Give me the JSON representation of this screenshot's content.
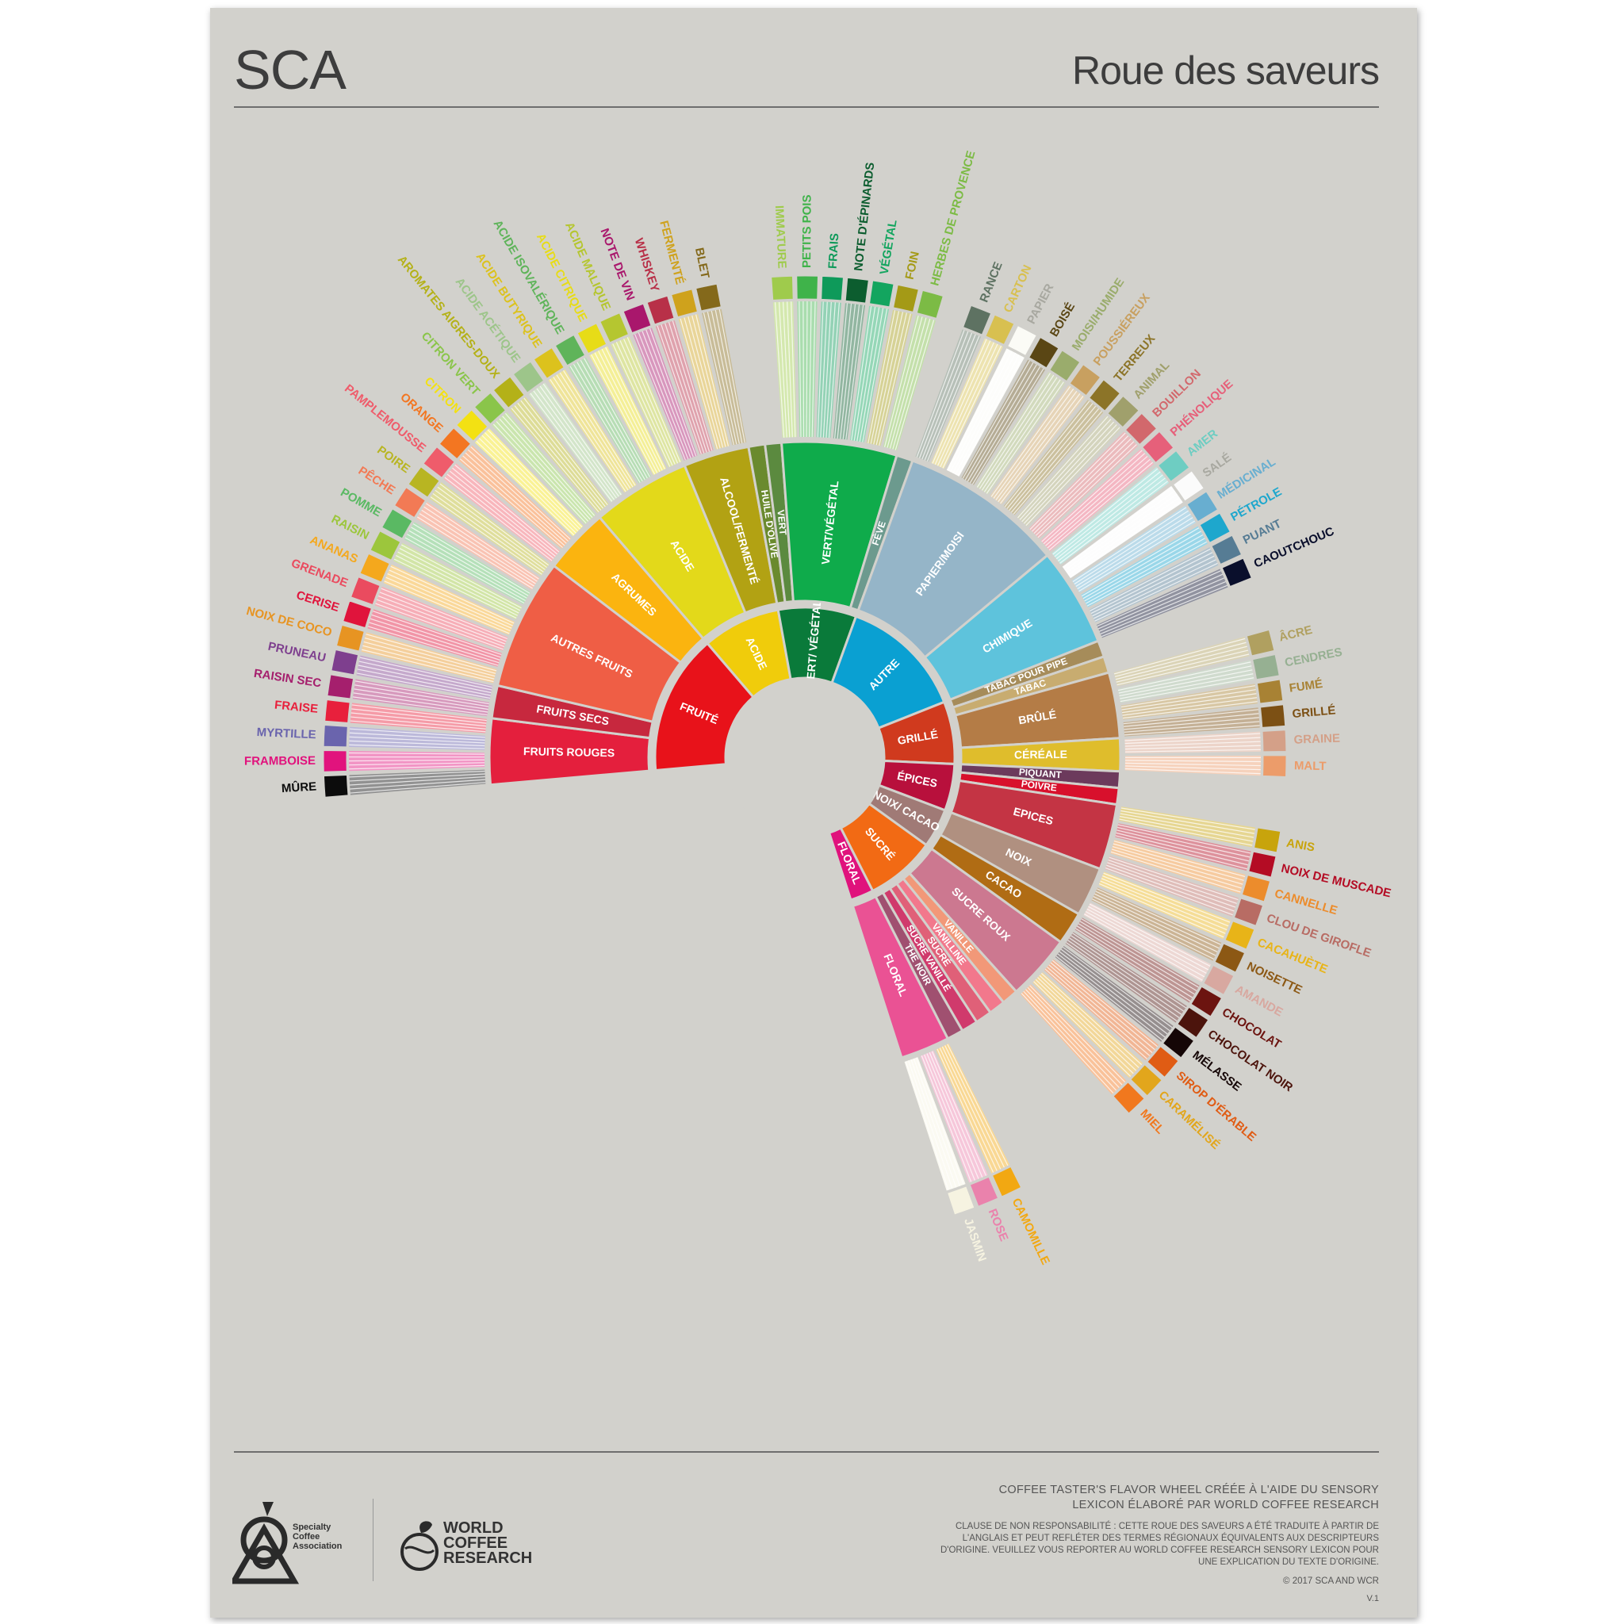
{
  "header": {
    "title": "SCA",
    "subtitle": "Roue des saveurs"
  },
  "wheel": {
    "inner": [
      {
        "label": "FRUITÉ",
        "color": "#e8121a",
        "mids": [
          {
            "label": "FRUITS ROUGES",
            "color": "#e41f3d",
            "leaves": [
              {
                "label": "MÛRE",
                "color": "#0c0c0c"
              },
              {
                "label": "FRAMBOISE",
                "color": "#e1137d"
              },
              {
                "label": "MYRTILLE",
                "color": "#6a64ad"
              },
              {
                "label": "FRAISE",
                "color": "#e8203c"
              }
            ]
          },
          {
            "label": "FRUITS SECS",
            "color": "#c7283e",
            "leaves": [
              {
                "label": "RAISIN SEC",
                "color": "#a51f6d"
              },
              {
                "label": "PRUNEAU",
                "color": "#7e3f8e"
              }
            ]
          },
          {
            "label": "AUTRES FRUITS",
            "color": "#ef5e45",
            "leaves": [
              {
                "label": "NOIX DE COCO",
                "color": "#e79422"
              },
              {
                "label": "CERISE",
                "color": "#e0143c"
              },
              {
                "label": "GRENADE",
                "color": "#ea4b5f"
              },
              {
                "label": "ANANAS",
                "color": "#f4a81d"
              },
              {
                "label": "RAISIN",
                "color": "#9cc63c"
              },
              {
                "label": "POMME",
                "color": "#5ab963"
              },
              {
                "label": "PÊCHE",
                "color": "#f27a55"
              },
              {
                "label": "POIRE",
                "color": "#b8b522"
              }
            ]
          },
          {
            "label": "AGRUMES",
            "color": "#fbb40f",
            "leaves": [
              {
                "label": "PAMPLEMOUSSE",
                "color": "#ef5c6b"
              },
              {
                "label": "ORANGE",
                "color": "#f37621"
              },
              {
                "label": "CITRON",
                "color": "#f3e113"
              },
              {
                "label": "CITRON VERT",
                "color": "#8ac54a"
              }
            ]
          }
        ]
      },
      {
        "label": "ACIDE",
        "color": "#f0cc0b",
        "mids": [
          {
            "label": "ACIDE",
            "color": "#e3d91a",
            "leaves": [
              {
                "label": "AROMATES AIGRES-DOUX",
                "color": "#b4b118"
              },
              {
                "label": "ACIDE ACÉTIQUE",
                "color": "#9dc58a"
              },
              {
                "label": "ACIDE BUTYRIQUE",
                "color": "#dcc21d"
              },
              {
                "label": "ACIDE ISOVALÉRIQUE",
                "color": "#5fb45a"
              },
              {
                "label": "ACIDE CITRIQUE",
                "color": "#e7dc17"
              },
              {
                "label": "ACIDE MALIQUE",
                "color": "#b5c630"
              }
            ]
          },
          {
            "label": "ALCOOL/FERMENTÉ",
            "color": "#b2a213",
            "leaves": [
              {
                "label": "NOTE DE VIN",
                "color": "#a9176c"
              },
              {
                "label": "WHISKEY",
                "color": "#b83048"
              },
              {
                "label": "FERMENTÉ",
                "color": "#cfa21c"
              },
              {
                "label": "BLET",
                "color": "#84691b"
              }
            ]
          }
        ]
      },
      {
        "label": "VERT/ VÉGÉTAL",
        "color": "#0a7a3a",
        "mids": [
          {
            "label": "HUILE D'OLIVE",
            "color": "#6a8a2e",
            "leaves": []
          },
          {
            "label": "VERT",
            "color": "#5b8a3f",
            "leaves": []
          },
          {
            "label": "VERT/VÉGÉTAL",
            "color": "#0fab4b",
            "leaves": [
              {
                "label": "IMMATURE",
                "color": "#9fcb4c"
              },
              {
                "label": "PETITS POIS",
                "color": "#3fb34a"
              },
              {
                "label": "FRAIS",
                "color": "#0e9a5a"
              },
              {
                "label": "NOTE D'ÉPINARDS",
                "color": "#0c5d2f"
              },
              {
                "label": "VÉGÉTAL",
                "color": "#13a55f"
              },
              {
                "label": "FOIN",
                "color": "#a49a16"
              },
              {
                "label": "HERBES DE PROVENCE",
                "color": "#7cbb45"
              }
            ]
          },
          {
            "label": "FÈVE",
            "color": "#6c9a8e",
            "leaves": []
          }
        ]
      },
      {
        "label": "AUTRE",
        "color": "#0aa0d2",
        "mids": [
          {
            "label": "PAPIER/MOISI",
            "color": "#95b5c8",
            "leaves": [
              {
                "label": "RANCE",
                "color": "#5e7262"
              },
              {
                "label": "CARTON",
                "color": "#d8c050"
              },
              {
                "label": "PAPIER",
                "color": "#fbfbf6"
              },
              {
                "label": "BOISÉ",
                "color": "#5a4614"
              },
              {
                "label": "MOISI/HUMIDE",
                "color": "#9aac6c"
              },
              {
                "label": "POUSSIÉREUX",
                "color": "#c8a060"
              },
              {
                "label": "TERREUX",
                "color": "#8c7428"
              },
              {
                "label": "ANIMAL",
                "color": "#a0a06c"
              },
              {
                "label": "BOUILLON",
                "color": "#d2686c"
              },
              {
                "label": "PHÉNOLIQUE",
                "color": "#e6607a"
              }
            ]
          },
          {
            "label": "CHIMIQUE",
            "color": "#5ec3dc",
            "leaves": [
              {
                "label": "AMER",
                "color": "#6ecdc2"
              },
              {
                "label": "SALÉ",
                "color": "#fbfbfb"
              },
              {
                "label": "MÉDICINAL",
                "color": "#68aed0"
              },
              {
                "label": "PÉTROLE",
                "color": "#1ea7cd"
              },
              {
                "label": "PUANT",
                "color": "#567c94"
              },
              {
                "label": "CAOUTCHOUC",
                "color": "#0a0f2c"
              }
            ]
          }
        ]
      },
      {
        "label": "GRILLÉ",
        "color": "#d03a1e",
        "mids": [
          {
            "label": "TABAC POUR PIPE",
            "color": "#a68c5a",
            "leaves": []
          },
          {
            "label": "TABAC",
            "color": "#c8ac70",
            "leaves": []
          },
          {
            "label": "BRÛLÉ",
            "color": "#b47c46",
            "leaves": [
              {
                "label": "ÂCRE",
                "color": "#b0a060"
              },
              {
                "label": "CENDRES",
                "color": "#96b092"
              },
              {
                "label": "FUMÉ",
                "color": "#a88234"
              },
              {
                "label": "GRILLÉ",
                "color": "#7c5014"
              }
            ]
          },
          {
            "label": "CÉRÉALE",
            "color": "#dfbd2c",
            "leaves": [
              {
                "label": "GRAINE",
                "color": "#d4a088"
              },
              {
                "label": "MALT",
                "color": "#ec9c6a"
              }
            ]
          }
        ]
      },
      {
        "label": "ÉPICES",
        "color": "#b8103c",
        "mids": [
          {
            "label": "PIQUANT",
            "color": "#6c3a5c",
            "leaves": []
          },
          {
            "label": "POIVRE",
            "color": "#d8102c",
            "leaves": []
          },
          {
            "label": "EPICES",
            "color": "#c43444",
            "leaves": [
              {
                "label": "ANIS",
                "color": "#c8a40c"
              },
              {
                "label": "NOIX DE MUSCADE",
                "color": "#b40c24"
              },
              {
                "label": "CANNELLE",
                "color": "#ec8c2c"
              },
              {
                "label": "CLOU DE GIROFLE",
                "color": "#b86c64"
              }
            ]
          }
        ]
      },
      {
        "label": "NOIX/ CACAO",
        "color": "#a07a76",
        "mids": [
          {
            "label": "NOIX",
            "color": "#b09080",
            "leaves": [
              {
                "label": "CACAHUÈTE",
                "color": "#e8b418"
              },
              {
                "label": "NOISETTE",
                "color": "#8c5814"
              },
              {
                "label": "AMANDE",
                "color": "#d8a8a0"
              }
            ]
          },
          {
            "label": "CACAO",
            "color": "#b06c14",
            "leaves": [
              {
                "label": "CHOCOLAT",
                "color": "#6c1410"
              },
              {
                "label": "CHOCOLAT NOIR",
                "color": "#4c140c"
              }
            ]
          }
        ]
      },
      {
        "label": "SUCRÉ",
        "color": "#f26a14",
        "mids": [
          {
            "label": "SUCRE ROUX",
            "color": "#cc7890",
            "leaves": [
              {
                "label": "MÉLASSE",
                "color": "#150606"
              },
              {
                "label": "SIROP D'ÉRABLE",
                "color": "#e05c14"
              },
              {
                "label": "CARAMÉLISÉ",
                "color": "#e2a61c"
              },
              {
                "label": "MIEL",
                "color": "#f1781e"
              }
            ]
          },
          {
            "label": "VANILLE",
            "color": "#f29878",
            "leaves": []
          },
          {
            "label": "VANILLINE",
            "color": "#f2788c",
            "leaves": []
          },
          {
            "label": "SUCRÉ",
            "color": "#e06078",
            "leaves": []
          },
          {
            "label": "SUCRE VANILLÉ",
            "color": "#d03a6c",
            "leaves": []
          },
          {
            "label": "THE NOIR",
            "color": "#a05070",
            "leaves": []
          }
        ]
      },
      {
        "label": "FLORAL",
        "color": "#e0127c",
        "mids": [
          {
            "label": "FLORAL",
            "color": "#ea5294",
            "leaves": [
              {
                "label": "CAMOMILLE",
                "color": "#f2a812"
              },
              {
                "label": "ROSE",
                "color": "#ea82ac"
              },
              {
                "label": "JASMIN",
                "color": "#f6f3e1"
              }
            ]
          }
        ]
      }
    ]
  },
  "footer": {
    "credit_line_1": "COFFEE TASTER'S FLAVOR WHEEL CRÉÉE À L'AIDE DU SENSORY",
    "credit_line_2": "LEXICON ÉLABORÉ PAR WORLD COFFEE RESEARCH",
    "disclaimer": "CLAUSE DE NON RESPONSABILITÉ : CETTE ROUE DES SAVEURS A ÉTÉ TRADUITE À PARTIR DE L'ANGLAIS ET PEUT REFLÉTER DES TERMES RÉGIONAUX ÉQUIVALENTS AUX DESCRIPTEURS D'ORIGINE. VEUILLEZ VOUS REPORTER AU WORLD COFFEE RESEARCH SENSORY LEXICON POUR UNE EXPLICATION DU TEXTE D'ORIGINE.",
    "copyright": "© 2017 SCA AND WCR",
    "version": "V.1",
    "sca_logo_line1": "Specialty",
    "sca_logo_line2": "Coffee",
    "sca_logo_line3": "Association",
    "wcr_logo_line1": "WORLD",
    "wcr_logo_line2": "COFFEE",
    "wcr_logo_line3": "RESEARCH"
  }
}
